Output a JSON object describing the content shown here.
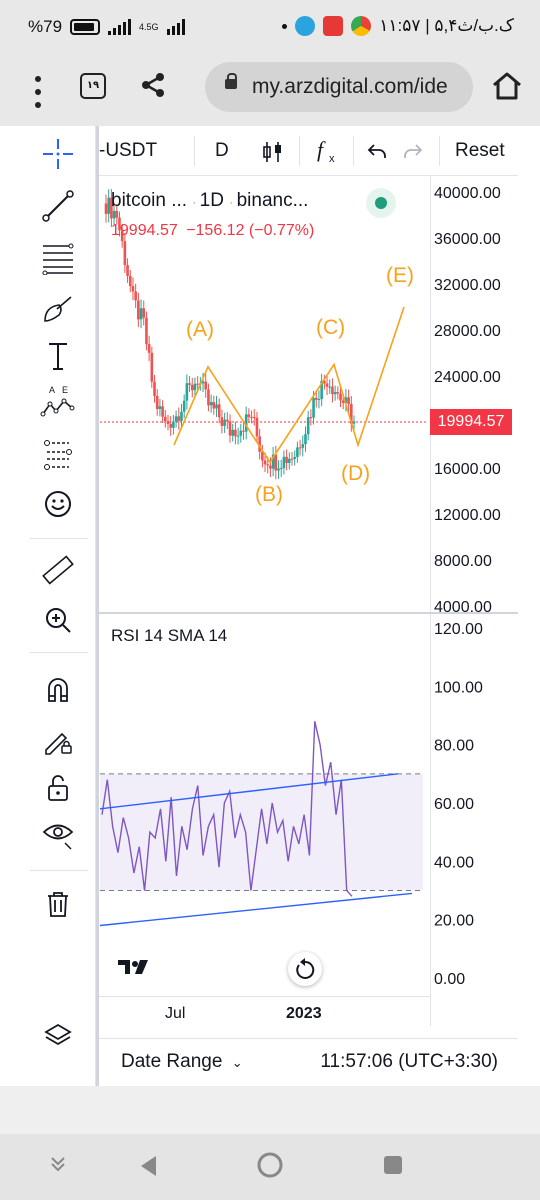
{
  "status_bar": {
    "battery": "%79",
    "network": "4.5G",
    "time_date": "۱۱:۵۷ | ۵,۴ک.ب/ث"
  },
  "browser": {
    "tab_count": "۱۹",
    "url": "my.arzdigital.com/ide"
  },
  "toolbar": {
    "symbol": "-USDT",
    "interval": "D",
    "reset_label": "Reset"
  },
  "legend": {
    "title_parts": [
      "bitcoin ...",
      "1D",
      "binanc..."
    ],
    "price": "19994.57",
    "change": "−156.12 (−0.77%)"
  },
  "price_axis": [
    "40000.00",
    "36000.00",
    "32000.00",
    "28000.00",
    "24000.00",
    "20000.00",
    "16000.00",
    "12000.00",
    "8000.00",
    "4000.00"
  ],
  "current_price_tag": "19994.57",
  "wave_labels": [
    "(A)",
    "(B)",
    "(C)",
    "(D)",
    "(E)"
  ],
  "rsi": {
    "legend": "RSI 14 SMA 14",
    "axis": [
      "120.00",
      "100.00",
      "80.00",
      "60.00",
      "40.00",
      "20.00",
      "0.00"
    ]
  },
  "time_axis": [
    "Jul",
    "2023"
  ],
  "bottom_bar": {
    "date_range_label": "Date Range",
    "clock": "11:57:06 (UTC+3:30)"
  },
  "colors": {
    "up": "#26a69a",
    "down": "#ef5350",
    "wave": "#f7a21b",
    "rsi_line": "#7e57c2",
    "channel": "#2962ff",
    "price_tag": "#f23645"
  },
  "chart_data": [
    {
      "type": "candlestick",
      "title": "bitcoin ... 1D binanc...",
      "ylim": [
        4000,
        40000
      ],
      "yticks": [
        40000,
        36000,
        32000,
        28000,
        24000,
        20000,
        16000,
        12000,
        8000,
        4000
      ],
      "xticks": [
        "Jul",
        "2023"
      ],
      "last_price": 19994.57,
      "approx_close_path": [
        {
          "i": 0,
          "v": 39000
        },
        {
          "i": 4,
          "v": 38000
        },
        {
          "i": 10,
          "v": 30500
        },
        {
          "i": 14,
          "v": 28500
        },
        {
          "i": 18,
          "v": 22000
        },
        {
          "i": 22,
          "v": 19800
        },
        {
          "i": 26,
          "v": 20500
        },
        {
          "i": 30,
          "v": 22500
        },
        {
          "i": 34,
          "v": 23800
        },
        {
          "i": 38,
          "v": 21500
        },
        {
          "i": 42,
          "v": 20500
        },
        {
          "i": 46,
          "v": 19200
        },
        {
          "i": 50,
          "v": 19600
        },
        {
          "i": 54,
          "v": 20600
        },
        {
          "i": 58,
          "v": 17000
        },
        {
          "i": 62,
          "v": 16600
        },
        {
          "i": 66,
          "v": 16800
        },
        {
          "i": 70,
          "v": 17200
        },
        {
          "i": 74,
          "v": 19500
        },
        {
          "i": 78,
          "v": 22500
        },
        {
          "i": 82,
          "v": 23800
        },
        {
          "i": 86,
          "v": 22500
        },
        {
          "i": 90,
          "v": 21000
        },
        {
          "i": 92,
          "v": 19995
        }
      ],
      "wave_points": [
        {
          "label": "start",
          "v": 18000
        },
        {
          "label": "(A)",
          "v": 24800
        },
        {
          "label": "(B)",
          "v": 16500
        },
        {
          "label": "(C)",
          "v": 25000
        },
        {
          "label": "(D)",
          "v": 18000
        },
        {
          "label": "(E)",
          "v": 30000
        }
      ]
    },
    {
      "type": "line",
      "title": "RSI 14 SMA 14",
      "ylim": [
        0,
        120
      ],
      "yticks": [
        120,
        100,
        80,
        60,
        40,
        20,
        0
      ],
      "band": [
        30,
        70
      ],
      "values": [
        56,
        68,
        52,
        43,
        55,
        48,
        36,
        45,
        30,
        50,
        48,
        58,
        40,
        62,
        35,
        52,
        44,
        58,
        66,
        42,
        52,
        56,
        38,
        60,
        64,
        48,
        56,
        50,
        30,
        44,
        58,
        46,
        60,
        50,
        54,
        40,
        52,
        46,
        56,
        42,
        88,
        80,
        66,
        74,
        56,
        68,
        30,
        28
      ],
      "channel_lines": [
        {
          "from": 58,
          "to": 70
        },
        {
          "from": 18,
          "to": 29
        }
      ]
    }
  ]
}
